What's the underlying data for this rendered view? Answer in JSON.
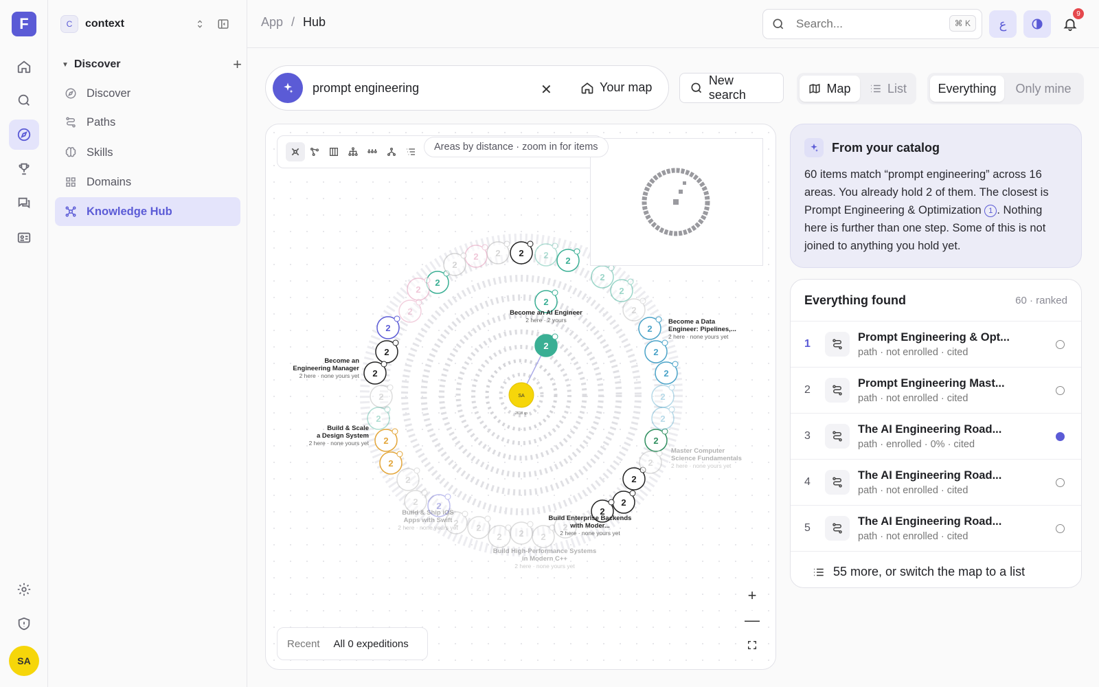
{
  "app": {
    "logo_letter": "F"
  },
  "rail": {
    "avatar_initials": "SA"
  },
  "sidebar": {
    "workspace_badge": "C",
    "workspace_name": "context",
    "section_title": "Discover",
    "items": [
      {
        "label": "Discover",
        "icon": "compass-icon"
      },
      {
        "label": "Paths",
        "icon": "route-icon"
      },
      {
        "label": "Skills",
        "icon": "brain-icon"
      },
      {
        "label": "Domains",
        "icon": "grid-icon"
      },
      {
        "label": "Knowledge Hub",
        "icon": "hub-icon",
        "active": true
      }
    ]
  },
  "topbar": {
    "breadcrumb": [
      "App",
      "Hub"
    ],
    "breadcrumb_sep": "/",
    "search_placeholder": "Search...",
    "search_shortcut": "⌘ K",
    "lang_glyph": "ع",
    "notification_count": "9"
  },
  "query": {
    "text": "prompt engineering",
    "clear": "✕",
    "your_map": "Your map",
    "new_search": "New search"
  },
  "view_toggle": {
    "map": "Map",
    "list": "List"
  },
  "scope_toggle": {
    "everything": "Everything",
    "only_mine": "Only mine"
  },
  "map": {
    "hint": "Areas by distance · zoom in for items",
    "recent_label": "Recent",
    "expeditions": "All 0 expeditions",
    "zoom_in": "+",
    "zoom_out": "—",
    "center_initials": "SA",
    "center_caption": "2618 xp",
    "labels": [
      {
        "title": "Become an AI Engineer",
        "sub": "2 here · 2 yours"
      },
      {
        "title": "Become a Data Engineer: Pipelines,...",
        "sub": "2 here · none yours yet"
      },
      {
        "title": "Become an Engineering Manager",
        "sub": "2 here · none yours yet"
      },
      {
        "title": "Build & Scale a Design System",
        "sub": "2 here · none yours yet"
      },
      {
        "title": "Master Computer Science Fundamentals",
        "sub": "2 here · none yours yet"
      },
      {
        "title": "Build & Ship iOS Apps with Swift",
        "sub": "2 here · none yours yet"
      },
      {
        "title": "Build Enterprise Backends with Moder...",
        "sub": "2 here · none yours yet"
      },
      {
        "title": "Build High-Performance Systems in Modern C++",
        "sub": "2 here · none yours yet"
      }
    ],
    "colors": {
      "teal": "#3aaf94",
      "indigo": "#5b5bd6",
      "amber": "#e3a63a",
      "green": "#2f8f5f",
      "pink": "#e7a2bf",
      "yellow": "#f6d60a"
    }
  },
  "catalog": {
    "title": "From your catalog",
    "text_before": "60 items match “prompt engineering” across 16 areas. You already hold 2 of them. The closest is Prompt Engineering & Optimization",
    "badge": "1",
    "text_after": ". Nothing here is further than one step. Some of this is not joined to anything you hold yet."
  },
  "results": {
    "title": "Everything found",
    "meta": "60 · ranked",
    "items": [
      {
        "rank": "1",
        "title": "Prompt Engineering & Opt...",
        "sub": "path · not enrolled · cited",
        "selected": false
      },
      {
        "rank": "2",
        "title": "Prompt Engineering Mast...",
        "sub": "path · not enrolled · cited",
        "selected": false
      },
      {
        "rank": "3",
        "title": "The AI Engineering Road...",
        "sub": "path · enrolled · 0% · cited",
        "selected": true
      },
      {
        "rank": "4",
        "title": "The AI Engineering Road...",
        "sub": "path · not enrolled · cited",
        "selected": false
      },
      {
        "rank": "5",
        "title": "The AI Engineering Road...",
        "sub": "path · not enrolled · cited",
        "selected": false
      }
    ],
    "more": "55 more, or switch the map to a list"
  }
}
